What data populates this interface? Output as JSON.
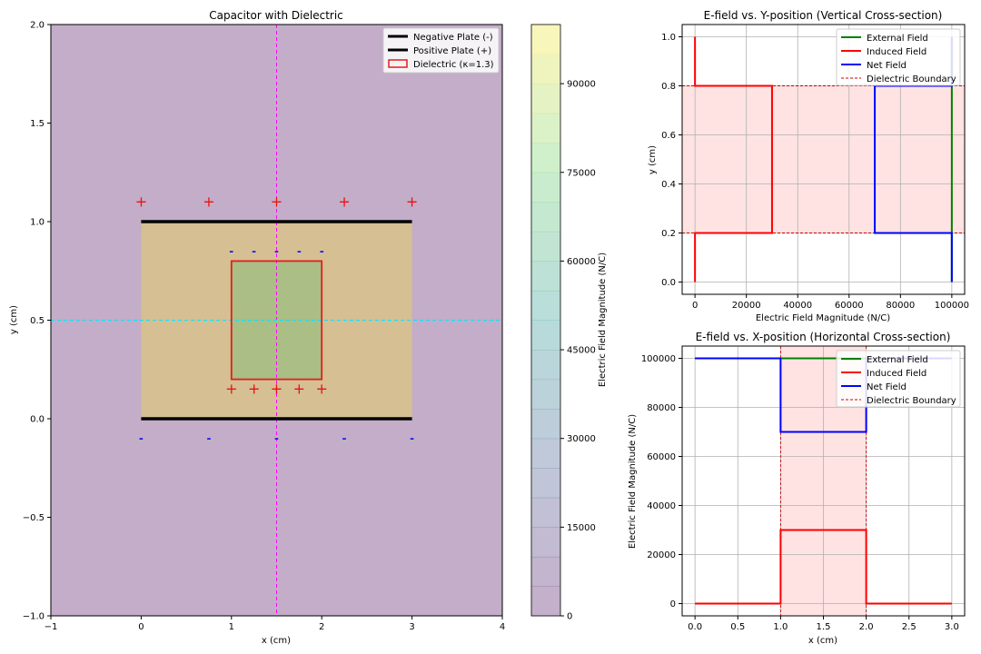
{
  "chart_data": [
    {
      "type": "heatmap",
      "title": "Capacitor with Dielectric",
      "xlabel": "x (cm)",
      "ylabel": "y (cm)",
      "xlim": [
        -1,
        4
      ],
      "ylim": [
        -1,
        2
      ],
      "xticks": [
        "−1",
        "0",
        "1",
        "2",
        "3",
        "4"
      ],
      "yticks": [
        "−1.0",
        "−0.5",
        "0.0",
        "0.5",
        "1.0",
        "1.5",
        "2.0"
      ],
      "colorbar": {
        "label": "Electric Field Magnitude (N/C)",
        "range": [
          0,
          100000
        ],
        "ticks": [
          "0",
          "15000",
          "30000",
          "45000",
          "60000",
          "75000",
          "90000"
        ],
        "tick_values": [
          0,
          15000,
          30000,
          45000,
          60000,
          75000,
          90000
        ]
      },
      "regions": [
        {
          "name": "outside",
          "x": [
            -1,
            4
          ],
          "y": [
            -1,
            2
          ],
          "value": 0
        },
        {
          "name": "between plates",
          "x": [
            0,
            3
          ],
          "y": [
            0,
            1
          ],
          "value": 100000
        },
        {
          "name": "dielectric",
          "x": [
            1,
            2
          ],
          "y": [
            0.2,
            0.8
          ],
          "value": 70000
        }
      ],
      "plates": [
        {
          "name": "Negative Plate (-)",
          "y": 1.0,
          "x": [
            0,
            3
          ]
        },
        {
          "name": "Positive Plate (+)",
          "y": 0.0,
          "x": [
            0,
            3
          ]
        }
      ],
      "dielectric_label": "Dielectric (κ=1.3)",
      "plus_charges": [
        {
          "x": 0,
          "y": 1.1
        },
        {
          "x": 0.75,
          "y": 1.1
        },
        {
          "x": 1.5,
          "y": 1.1
        },
        {
          "x": 2.25,
          "y": 1.1
        },
        {
          "x": 3,
          "y": 1.1
        },
        {
          "x": 1,
          "y": 0.15
        },
        {
          "x": 1.25,
          "y": 0.15
        },
        {
          "x": 1.5,
          "y": 0.15
        },
        {
          "x": 1.75,
          "y": 0.15
        },
        {
          "x": 2,
          "y": 0.15
        }
      ],
      "minus_charges": [
        {
          "x": 1,
          "y": 0.85
        },
        {
          "x": 1.25,
          "y": 0.85
        },
        {
          "x": 1.5,
          "y": 0.85
        },
        {
          "x": 1.75,
          "y": 0.85
        },
        {
          "x": 2,
          "y": 0.85
        },
        {
          "x": 0,
          "y": -0.1
        },
        {
          "x": 0.75,
          "y": -0.1
        },
        {
          "x": 1.5,
          "y": -0.1
        },
        {
          "x": 2.25,
          "y": -0.1
        },
        {
          "x": 3,
          "y": -0.1
        }
      ],
      "charge_symbols": {
        "plus": "+",
        "minus": "-"
      },
      "crosshair": {
        "x": 1.5,
        "y": 0.5
      },
      "legend_placement": "top-right",
      "colors": {
        "plates": "#000000",
        "dielectric_edge": "#e0201b",
        "plus": "#ee1111",
        "minus": "#1a1aee",
        "vline": "#ff00ff",
        "hline": "#00e5ff"
      }
    },
    {
      "type": "line",
      "title": "E-field vs. Y-position (Vertical Cross-section)",
      "xlabel": "Electric Field Magnitude (N/C)",
      "ylabel": "y (cm)",
      "xlim": [
        -5000,
        105000
      ],
      "ylim": [
        -0.05,
        1.05
      ],
      "xticks": [
        0,
        20000,
        40000,
        60000,
        80000,
        100000
      ],
      "xtick_labels": [
        "0",
        "20000",
        "40000",
        "60000",
        "80000",
        "100000"
      ],
      "yticks": [
        0.0,
        0.2,
        0.4,
        0.6,
        0.8,
        1.0
      ],
      "ytick_labels": [
        "0.0",
        "0.2",
        "0.4",
        "0.6",
        "0.8",
        "1.0"
      ],
      "grid": true,
      "shaded_band": {
        "axis": "y",
        "range": [
          0.2,
          0.8
        ]
      },
      "series": [
        {
          "name": "External Field",
          "color": "#008000",
          "x": [
            100000,
            100000
          ],
          "y": [
            0,
            1
          ]
        },
        {
          "name": "Induced Field",
          "color": "#ff0000",
          "x": [
            0,
            0,
            30000,
            30000,
            0,
            0
          ],
          "y": [
            0,
            0.2,
            0.2,
            0.8,
            0.8,
            1
          ]
        },
        {
          "name": "Net Field",
          "color": "#0000ff",
          "x": [
            100000,
            100000,
            70000,
            70000,
            100000,
            100000
          ],
          "y": [
            0,
            0.2,
            0.2,
            0.8,
            0.8,
            1
          ]
        }
      ],
      "boundary": {
        "name": "Dielectric Boundary",
        "color": "#cc0000",
        "orientation": "horizontal",
        "values": [
          0.2,
          0.8
        ]
      },
      "legend_placement": "top-right"
    },
    {
      "type": "line",
      "title": "E-field vs. X-position (Horizontal Cross-section)",
      "xlabel": "x (cm)",
      "ylabel": "Electric Field Magnitude (N/C)",
      "xlim": [
        -0.15,
        3.15
      ],
      "ylim": [
        -5000,
        105000
      ],
      "xticks": [
        0,
        0.5,
        1,
        1.5,
        2,
        2.5,
        3
      ],
      "xtick_labels": [
        "0.0",
        "0.5",
        "1.0",
        "1.5",
        "2.0",
        "2.5",
        "3.0"
      ],
      "yticks": [
        0,
        20000,
        40000,
        60000,
        80000,
        100000
      ],
      "ytick_labels": [
        "0",
        "20000",
        "40000",
        "60000",
        "80000",
        "100000"
      ],
      "grid": true,
      "shaded_band": {
        "axis": "x",
        "range": [
          1,
          2
        ]
      },
      "series": [
        {
          "name": "External Field",
          "color": "#008000",
          "x": [
            0,
            3
          ],
          "y": [
            100000,
            100000
          ]
        },
        {
          "name": "Induced Field",
          "color": "#ff0000",
          "x": [
            0,
            1,
            1,
            2,
            2,
            3
          ],
          "y": [
            0,
            0,
            30000,
            30000,
            0,
            0
          ]
        },
        {
          "name": "Net Field",
          "color": "#0000ff",
          "x": [
            0,
            1,
            1,
            2,
            2,
            3
          ],
          "y": [
            100000,
            100000,
            70000,
            70000,
            100000,
            100000
          ]
        }
      ],
      "boundary": {
        "name": "Dielectric Boundary",
        "color": "#cc0000",
        "orientation": "vertical",
        "values": [
          1,
          2
        ]
      },
      "legend_placement": "top-right"
    }
  ]
}
